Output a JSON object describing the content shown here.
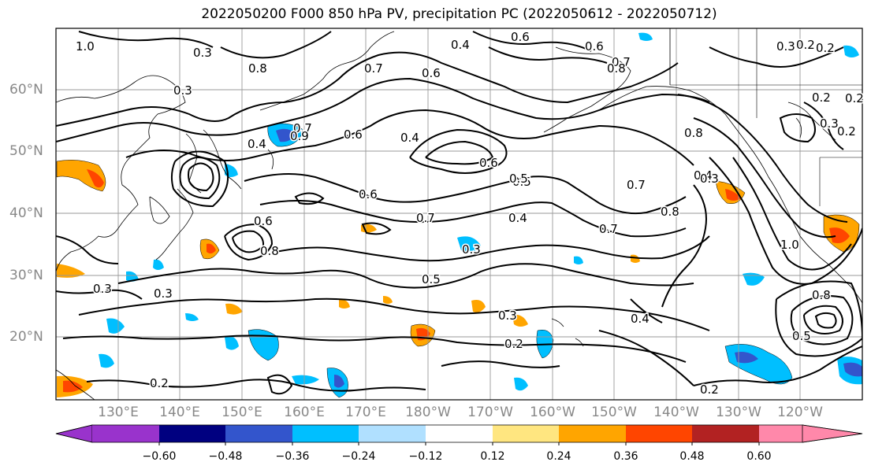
{
  "title": "2022050200 F000 850 hPa PV, precipitation PC (2022050612 - 2022050712)",
  "latitude_labels": [
    "60°N",
    "50°N",
    "40°N",
    "30°N",
    "20°N"
  ],
  "longitude_labels": [
    "130°E",
    "140°E",
    "150°E",
    "160°E",
    "170°E",
    "180°W",
    "170°W",
    "160°W",
    "150°W",
    "140°W",
    "130°W",
    "120°W"
  ],
  "contour_labels": [
    "1.0",
    "0.3",
    "0.3",
    "0.8",
    "0.7",
    "0.6",
    "0.4",
    "0.6",
    "0.6",
    "0.7",
    "0.8",
    "0.2",
    "0.7",
    "0.6",
    "0.3",
    "0.2",
    "0.9",
    "0.4",
    "0.4",
    "0.5",
    "0.4",
    "0.3",
    "0.7",
    "0.8",
    "0.6",
    "0.5",
    "0.6",
    "0.7",
    "0.4",
    "0.6",
    "0.8",
    "0.7",
    "0.8",
    "0.3",
    "0.3",
    "0.5",
    "0.3",
    "0.4",
    "0.3",
    "0.2",
    "0.2",
    "0.3",
    "0.2",
    "1.0",
    "0.8",
    "0.5",
    "0.2",
    "0.2",
    "0.2"
  ],
  "colorbar": {
    "ticks": [
      "−0.60",
      "−0.48",
      "−0.36",
      "−0.24",
      "−0.12",
      "0.12",
      "0.24",
      "0.36",
      "0.48",
      "0.60"
    ],
    "colors": [
      "#9933cc",
      "#000080",
      "#3355cc",
      "#00bfff",
      "#b0e0ff",
      "#ffffff",
      "#ffe680",
      "#ffa500",
      "#ff4500",
      "#b22222",
      "#ff88aa"
    ]
  },
  "precip_colors": {
    "strong_positive": "#ff4500",
    "positive": "#ffa500",
    "weak_positive": "#ffe680",
    "negative": "#00bfff",
    "weak_negative": "#b0e0ff",
    "strong_negative": "#3355cc"
  }
}
